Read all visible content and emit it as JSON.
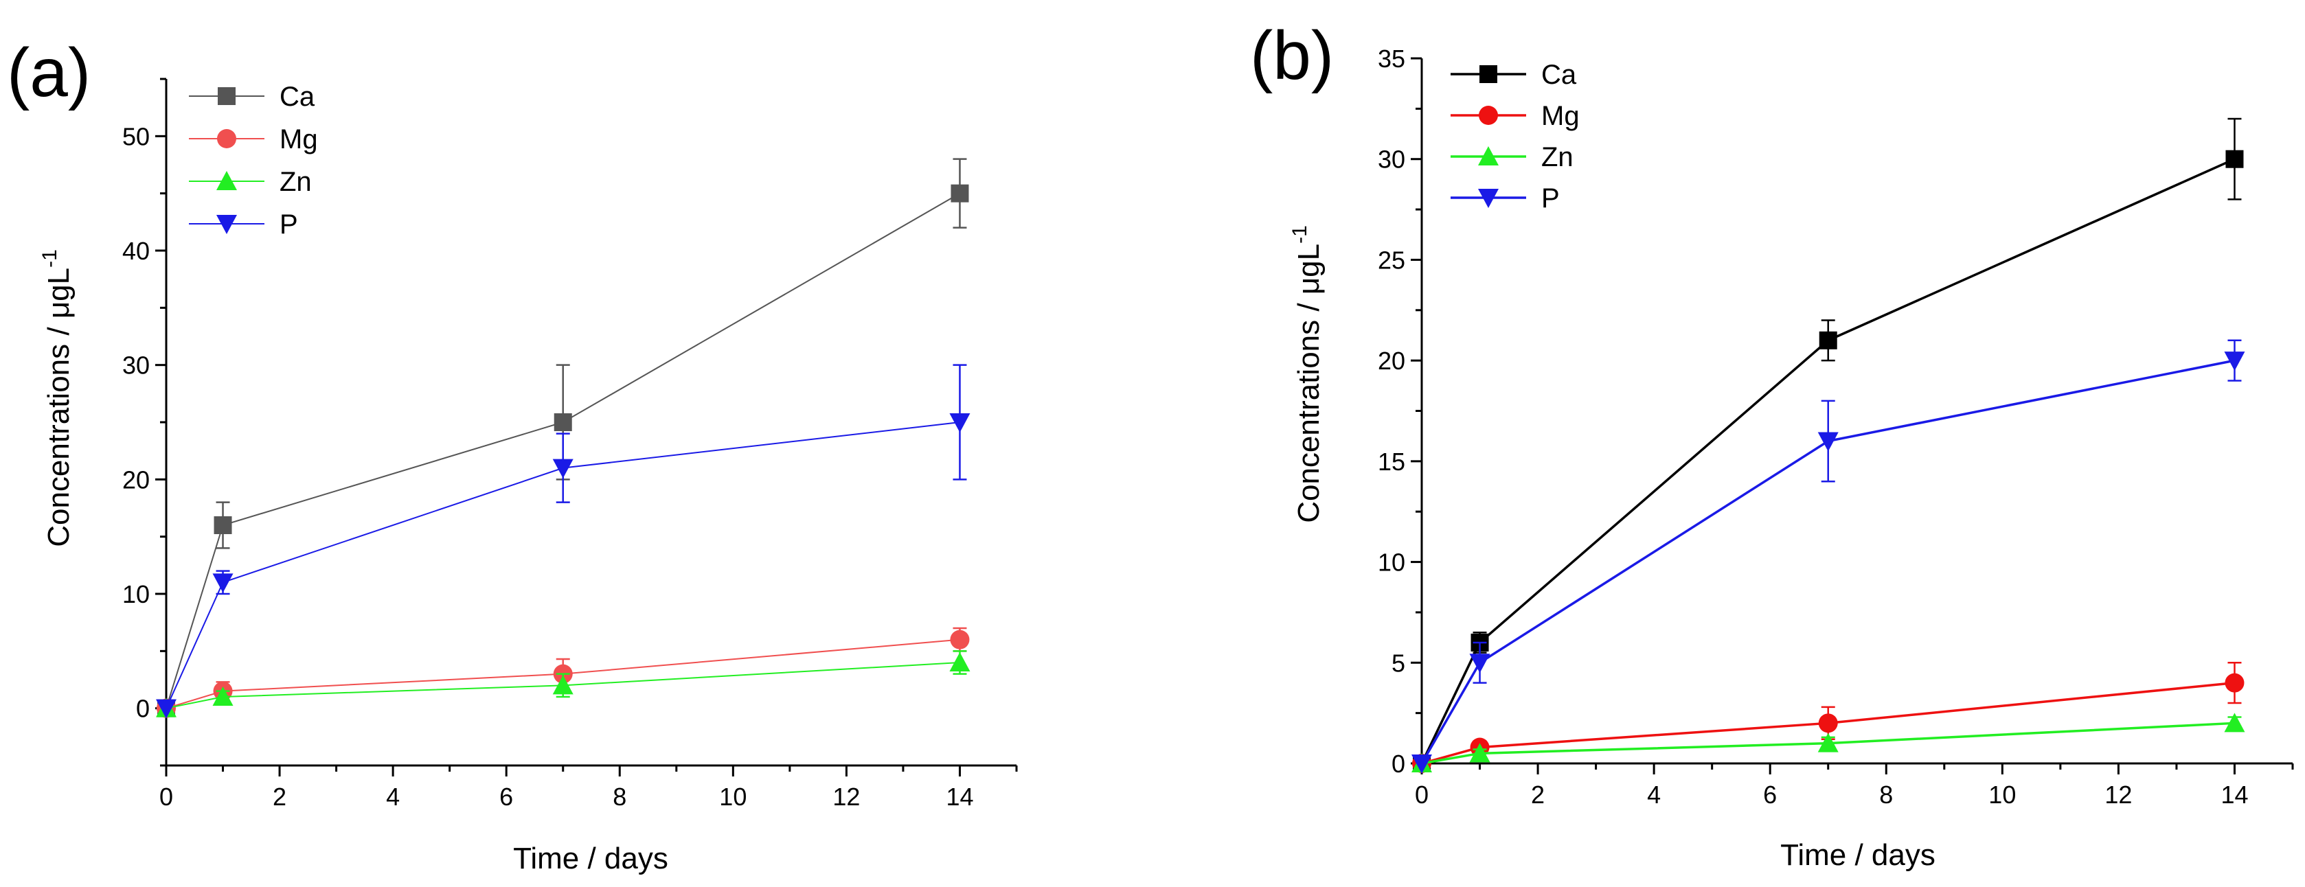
{
  "figure": {
    "panels": [
      {
        "panel_label": "(a)",
        "xlabel": "Time / days",
        "ylabel_main": "Concentrations / μgL",
        "ylabel_sup": "-1"
      },
      {
        "panel_label": "(b)",
        "xlabel": "Time / days",
        "ylabel_main": "Concentrations / μgL",
        "ylabel_sup": "-1"
      }
    ]
  },
  "chart_data": [
    {
      "type": "line",
      "panel_label": "(a)",
      "xlabel": "Time / days",
      "ylabel": "Concentrations / μgL-1",
      "xlim": [
        0,
        15
      ],
      "ylim": [
        -5,
        55
      ],
      "xticks": [
        0,
        2,
        4,
        6,
        8,
        10,
        12,
        14
      ],
      "yticks": [
        0,
        10,
        20,
        30,
        40,
        50
      ],
      "grid": false,
      "legend_position": "top-left",
      "series": [
        {
          "name": "Ca",
          "marker": "square",
          "color": "#555555",
          "x": [
            0,
            1,
            7,
            14
          ],
          "y": [
            0,
            16,
            25,
            45
          ],
          "err": [
            0,
            2,
            5,
            3
          ]
        },
        {
          "name": "Mg",
          "marker": "circle",
          "color": "#f04f4f",
          "x": [
            0,
            1,
            7,
            14
          ],
          "y": [
            0,
            1.5,
            3,
            6
          ],
          "err": [
            0,
            0.8,
            1.3,
            1
          ]
        },
        {
          "name": "Zn",
          "marker": "triangle-up",
          "color": "#22ee22",
          "x": [
            0,
            1,
            7,
            14
          ],
          "y": [
            0,
            1,
            2,
            4
          ],
          "err": [
            0,
            0.5,
            1,
            1
          ]
        },
        {
          "name": "P",
          "marker": "triangle-down",
          "color": "#1a1ae6",
          "x": [
            0,
            1,
            7,
            14
          ],
          "y": [
            0,
            11,
            21,
            25
          ],
          "err": [
            0,
            1,
            3,
            5
          ]
        }
      ]
    },
    {
      "type": "line",
      "panel_label": "(b)",
      "xlabel": "Time / days",
      "ylabel": "Concentrations / μgL-1",
      "xlim": [
        0,
        15
      ],
      "ylim": [
        0,
        35
      ],
      "xticks": [
        0,
        2,
        4,
        6,
        8,
        10,
        12,
        14
      ],
      "yticks": [
        0,
        5,
        10,
        15,
        20,
        25,
        30,
        35
      ],
      "grid": false,
      "legend_position": "top-left",
      "series": [
        {
          "name": "Ca",
          "marker": "square",
          "color": "#000000",
          "x": [
            0,
            1,
            7,
            14
          ],
          "y": [
            0,
            6,
            21,
            30
          ],
          "err": [
            0,
            0.5,
            1,
            2
          ]
        },
        {
          "name": "Mg",
          "marker": "circle",
          "color": "#ee1111",
          "x": [
            0,
            1,
            7,
            14
          ],
          "y": [
            0,
            0.8,
            2,
            4
          ],
          "err": [
            0,
            0.3,
            0.8,
            1
          ]
        },
        {
          "name": "Zn",
          "marker": "triangle-up",
          "color": "#22ee22",
          "x": [
            0,
            1,
            7,
            14
          ],
          "y": [
            0,
            0.5,
            1,
            2
          ],
          "err": [
            0,
            0.2,
            0.3,
            0.3
          ]
        },
        {
          "name": "P",
          "marker": "triangle-down",
          "color": "#1a1ae6",
          "x": [
            0,
            1,
            7,
            14
          ],
          "y": [
            0,
            5,
            16,
            20
          ],
          "err": [
            0,
            1,
            2,
            1
          ]
        }
      ]
    }
  ]
}
